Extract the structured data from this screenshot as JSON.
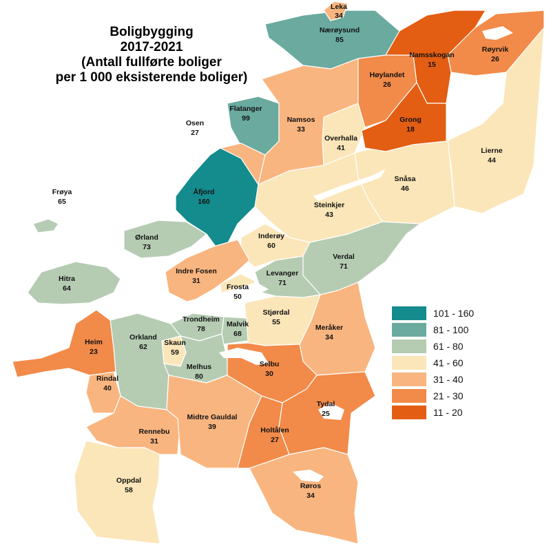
{
  "title": {
    "line1": "Boligbygging",
    "line2": "2017-2021",
    "line3": "(Antall fullførte boliger",
    "line4": "per 1 000 eksisterende boliger)"
  },
  "colors": {
    "c101_160": "#148b8d",
    "c81_100": "#6aaa9f",
    "c61_80": "#b5ccb3",
    "c41_60": "#fbe6b9",
    "c31_40": "#f9b57f",
    "c21_30": "#f28a49",
    "c11_20": "#e35d12"
  },
  "legend": [
    {
      "range": "101 - 160",
      "color": "#148b8d"
    },
    {
      "range": "81 - 100",
      "color": "#6aaa9f"
    },
    {
      "range": "61 - 80",
      "color": "#b5ccb3"
    },
    {
      "range": "41 - 60",
      "color": "#fbe6b9"
    },
    {
      "range": "31 - 40",
      "color": "#f9b57f"
    },
    {
      "range": "21 - 30",
      "color": "#f28a49"
    },
    {
      "range": "11 - 20",
      "color": "#e35d12"
    }
  ],
  "municipalities": [
    {
      "name": "Leka",
      "value": "34"
    },
    {
      "name": "Nærøysund",
      "value": "85"
    },
    {
      "name": "Namsskogan",
      "value": "15"
    },
    {
      "name": "Røyrvik",
      "value": "26"
    },
    {
      "name": "Høylandet",
      "value": "26"
    },
    {
      "name": "Flatanger",
      "value": "99"
    },
    {
      "name": "Osen",
      "value": "27"
    },
    {
      "name": "Namsos",
      "value": "33"
    },
    {
      "name": "Grong",
      "value": "18"
    },
    {
      "name": "Overhalla",
      "value": "41"
    },
    {
      "name": "Lierne",
      "value": "44"
    },
    {
      "name": "Frøya",
      "value": "65"
    },
    {
      "name": "Åfjord",
      "value": "160"
    },
    {
      "name": "Snåsa",
      "value": "46"
    },
    {
      "name": "Steinkjer",
      "value": "43"
    },
    {
      "name": "Ørland",
      "value": "73"
    },
    {
      "name": "Inderøy",
      "value": "60"
    },
    {
      "name": "Verdal",
      "value": "71"
    },
    {
      "name": "Hitra",
      "value": "64"
    },
    {
      "name": "Indre Fosen",
      "value": "31"
    },
    {
      "name": "Levanger",
      "value": "71"
    },
    {
      "name": "Frosta",
      "value": "50"
    },
    {
      "name": "Stjørdal",
      "value": "55"
    },
    {
      "name": "Trondheim",
      "value": "78"
    },
    {
      "name": "Malvik",
      "value": "68"
    },
    {
      "name": "Meråker",
      "value": "34"
    },
    {
      "name": "Heim",
      "value": "23"
    },
    {
      "name": "Orkland",
      "value": "62"
    },
    {
      "name": "Skaun",
      "value": "59"
    },
    {
      "name": "Selbu",
      "value": "30"
    },
    {
      "name": "Melhus",
      "value": "80"
    },
    {
      "name": "Rindal",
      "value": "40"
    },
    {
      "name": "Tydal",
      "value": "25"
    },
    {
      "name": "Rennebu",
      "value": "31"
    },
    {
      "name": "Midtre Gauldal",
      "value": "39"
    },
    {
      "name": "Holtålen",
      "value": "27"
    },
    {
      "name": "Oppdal",
      "value": "58"
    },
    {
      "name": "Røros",
      "value": "34"
    }
  ]
}
